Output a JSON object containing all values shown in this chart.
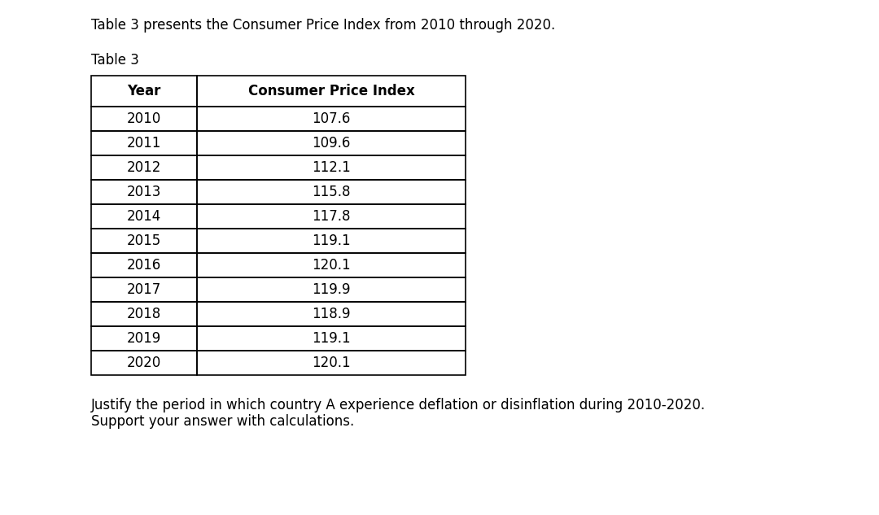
{
  "title_text": "Table 3 presents the Consumer Price Index from 2010 through 2020.",
  "table_label": "Table 3",
  "col_headers": [
    "Year",
    "Consumer Price Index"
  ],
  "years": [
    2010,
    2011,
    2012,
    2013,
    2014,
    2015,
    2016,
    2017,
    2018,
    2019,
    2020
  ],
  "cpi_values": [
    107.6,
    109.6,
    112.1,
    115.8,
    117.8,
    119.1,
    120.1,
    119.9,
    118.9,
    119.1,
    120.1
  ],
  "footer_text": "Justify the period in which country A experience deflation or disinflation during 2010-2020.\nSupport your answer with calculations.",
  "bg_color": "#ffffff",
  "text_color": "#000000",
  "table_border_color": "#000000",
  "header_font_size": 12,
  "body_font_size": 12,
  "title_font_size": 12,
  "footer_font_size": 12,
  "table_label_font_size": 12,
  "fig_width": 10.8,
  "fig_height": 6.33,
  "dpi": 100
}
